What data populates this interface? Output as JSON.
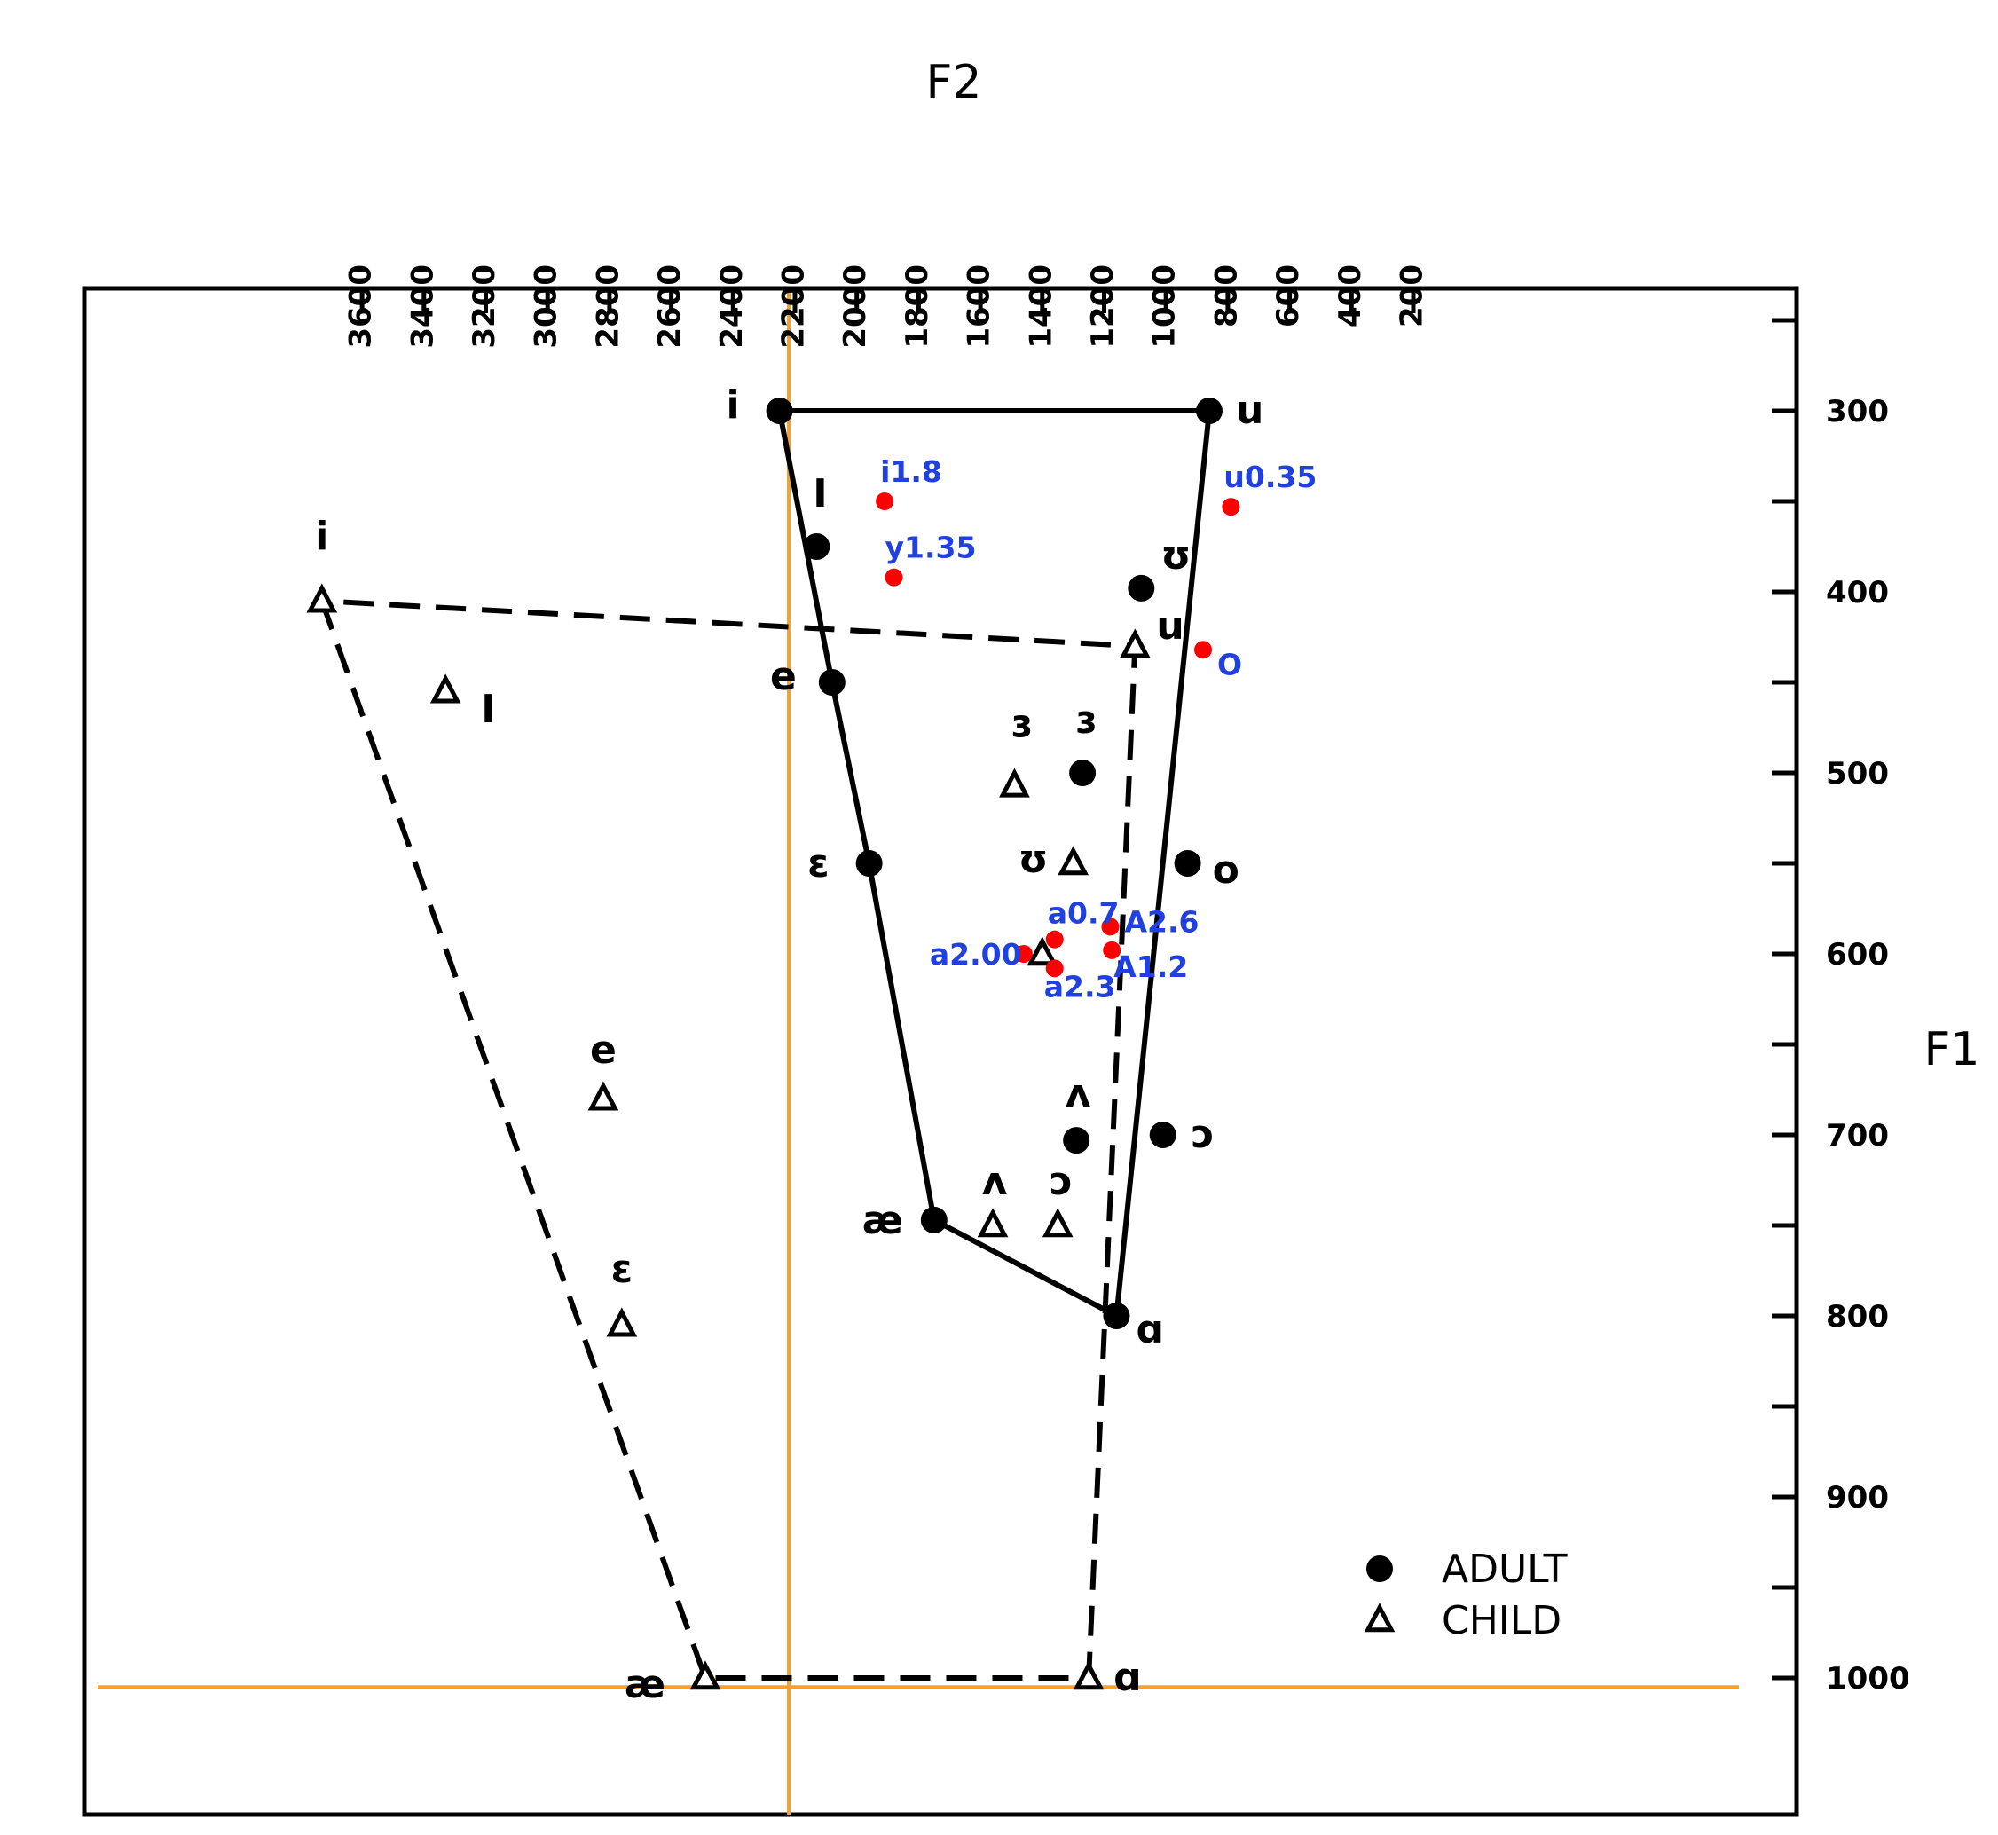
{
  "chart_data": {
    "type": "scatter",
    "title": "",
    "xlabel": "F2",
    "ylabel": "F1",
    "x_axis_position": "top",
    "y_axis_position": "right",
    "x_reversed": true,
    "y_reversed": true,
    "xlim": [
      3800,
      0
    ],
    "ylim": [
      200,
      1060
    ],
    "x_ticks": [
      3600,
      3400,
      3200,
      3000,
      2800,
      2600,
      2400,
      2200,
      2000,
      1800,
      1600,
      1400,
      1200,
      1000,
      800,
      600,
      400,
      200
    ],
    "y_ticks": [
      300,
      400,
      500,
      600,
      700,
      800,
      900,
      1000
    ],
    "y_minor_ticks": [
      250,
      350,
      450,
      550,
      650,
      750,
      850,
      950
    ],
    "grid": false,
    "legend": {
      "position": "bottom-right",
      "entries": [
        {
          "label": "ADULT",
          "marker": "circle"
        },
        {
          "label": "CHILD",
          "marker": "triangle"
        }
      ]
    },
    "series": [
      {
        "name": "ADULT",
        "marker": "circle",
        "color": "#000000",
        "points": [
          {
            "label": "i",
            "x": 2250,
            "y": 300
          },
          {
            "label": "I",
            "x": 2130,
            "y": 375
          },
          {
            "label": "e",
            "x": 2080,
            "y": 450
          },
          {
            "label": "ɛ",
            "x": 1960,
            "y": 550
          },
          {
            "label": "æ",
            "x": 1750,
            "y": 747
          },
          {
            "label": "ɑ",
            "x": 1160,
            "y": 800
          },
          {
            "label": "ɔ",
            "x": 1010,
            "y": 700
          },
          {
            "label": "o",
            "x": 930,
            "y": 550
          },
          {
            "label": "ʊ",
            "x": 1080,
            "y": 398
          },
          {
            "label": "u",
            "x": 860,
            "y": 300
          },
          {
            "label": "ɜ",
            "x": 1270,
            "y": 500
          },
          {
            "label": "ʌ",
            "x": 1290,
            "y": 703
          }
        ]
      },
      {
        "name": "CHILD",
        "marker": "triangle",
        "color": "#000000",
        "points": [
          {
            "label": "i",
            "x": 3730,
            "y": 405
          },
          {
            "label": "I",
            "x": 3330,
            "y": 455
          },
          {
            "label": "e",
            "x": 2820,
            "y": 680
          },
          {
            "label": "ɛ",
            "x": 2760,
            "y": 805
          },
          {
            "label": "æ",
            "x": 2490,
            "y": 1000
          },
          {
            "label": "ɑ",
            "x": 1250,
            "y": 1000
          },
          {
            "label": "ɔ",
            "x": 1350,
            "y": 750
          },
          {
            "label": "ʌ",
            "x": 1560,
            "y": 750
          },
          {
            "label": "ʊ",
            "x": 1300,
            "y": 550
          },
          {
            "label": "u",
            "x": 1100,
            "y": 430
          },
          {
            "label": "ɜ",
            "x": 1490,
            "y": 507
          },
          {
            "label": "ʌ",
            "x": 1400,
            "y": 600
          }
        ]
      },
      {
        "name": "",
        "marker": "circle",
        "color": "#ff0000",
        "points": [
          {
            "label": "i1.8",
            "x": 1910,
            "y": 350
          },
          {
            "label": "y1.35",
            "x": 1880,
            "y": 392
          },
          {
            "label": "u0.35",
            "x": 790,
            "y": 353
          },
          {
            "label": "O",
            "x": 880,
            "y": 432
          },
          {
            "label": "a0.7",
            "x": 1360,
            "y": 592
          },
          {
            "label": "A2.6",
            "x": 1180,
            "y": 585
          },
          {
            "label": "a2.00",
            "x": 1460,
            "y": 600
          },
          {
            "label": "a2.3",
            "x": 1360,
            "y": 608
          },
          {
            "label": "A1.2",
            "x": 1175,
            "y": 598
          }
        ]
      }
    ],
    "reference_lines": [
      {
        "orientation": "vertical",
        "x": 2220,
        "color": "#f5a030"
      },
      {
        "orientation": "horizontal",
        "y": 1005,
        "color": "#f5a030"
      }
    ],
    "polygons": [
      {
        "name": "ADULT",
        "style": "solid",
        "order": [
          "i",
          "e",
          "ɛ",
          "æ",
          "ɑ",
          "u"
        ],
        "closed": true
      },
      {
        "name": "CHILD",
        "style": "dashed",
        "order": [
          "i",
          "æ",
          "ɑ",
          "u"
        ],
        "closed": true
      }
    ]
  }
}
